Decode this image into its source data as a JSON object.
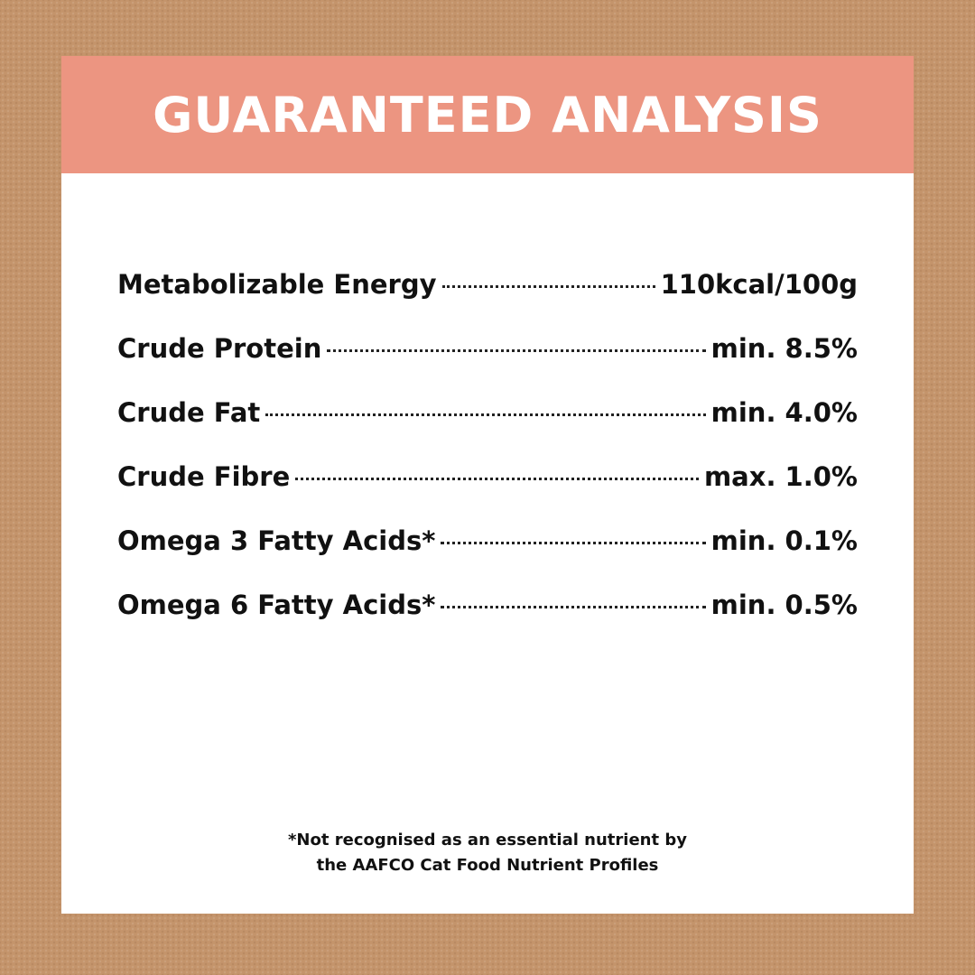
{
  "header": {
    "title": "GUARANTEED ANALYSIS"
  },
  "table": {
    "rows": [
      [
        "Metabolizable Energy",
        "110kcal/100g"
      ],
      [
        "Crude Protein",
        "min. 8.5%"
      ],
      [
        "Crude Fat",
        "min. 4.0%"
      ],
      [
        "Crude Fibre",
        "max. 1.0%"
      ],
      [
        "Omega 3 Fatty Acids*",
        "min. 0.1%"
      ],
      [
        "Omega 6 Fatty Acids*",
        "min. 0.5%"
      ]
    ]
  },
  "footnote": {
    "lines": [
      "*Not recognised as an essential nutrient by",
      "the AAFCO Cat Food Nutrient Profiles"
    ]
  }
}
